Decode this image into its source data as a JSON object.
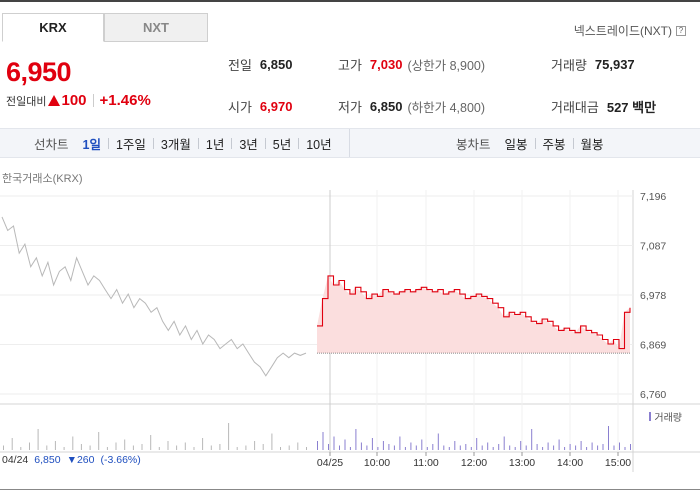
{
  "market_tabs": [
    {
      "label": "KRX",
      "active": true
    },
    {
      "label": "NXT",
      "active": false
    }
  ],
  "nxt_link": {
    "label": "넥스트레이드(NXT)",
    "help": "?"
  },
  "quote": {
    "price": "6,950",
    "change_label": "전일대비",
    "change": "100",
    "change_pct": "+1.46%"
  },
  "stats": {
    "prev_close": {
      "label": "전일",
      "value": "6,850"
    },
    "high": {
      "label": "고가",
      "value": "7,030",
      "sub": "(상한가 8,900)"
    },
    "volume": {
      "label": "거래량",
      "value": "75,937"
    },
    "open": {
      "label": "시가",
      "value": "6,970"
    },
    "low": {
      "label": "저가",
      "value": "6,850",
      "sub": "(하한가 4,800)"
    },
    "trade_value": {
      "label": "거래대금",
      "value": "527 백만"
    }
  },
  "line_chart_tabs": {
    "head": "선차트",
    "items": [
      "1일",
      "1주일",
      "3개월",
      "1년",
      "3년",
      "5년",
      "10년"
    ],
    "active_index": 0
  },
  "candle_chart_tabs": {
    "head": "봉차트",
    "items": [
      "일봉",
      "주봉",
      "월봉"
    ]
  },
  "exchange_label": "한국거래소(KRX)",
  "volume_legend": "거래량",
  "previous_day": {
    "date": "04/24",
    "price": "6,850",
    "change": "▼260",
    "pct": "(-3.66%)"
  },
  "chart_data": {
    "type": "line",
    "title": "",
    "y_ticks": [
      "7,196",
      "7,087",
      "6,978",
      "6,869",
      "6,760"
    ],
    "ylim": [
      6760,
      7196
    ],
    "x_ticks": [
      "04/25",
      "10:00",
      "11:00",
      "12:00",
      "13:00",
      "14:00",
      "15:00"
    ],
    "baseline": 6850,
    "prev_day_series": {
      "name": "04/24",
      "values": [
        7150,
        7120,
        7130,
        7070,
        7090,
        7040,
        7060,
        7020,
        7050,
        7000,
        7030,
        7040,
        7010,
        7060,
        7030,
        7000,
        7020,
        7010,
        6990,
        6970,
        6990,
        6960,
        6980,
        6950,
        6970,
        6960,
        6940,
        6950,
        6920,
        6900,
        6920,
        6890,
        6910,
        6880,
        6900,
        6870,
        6890,
        6880,
        6860,
        6870,
        6880,
        6860,
        6870,
        6850,
        6830,
        6820,
        6800,
        6820,
        6840,
        6850,
        6840,
        6850,
        6845,
        6850
      ]
    },
    "today_series": {
      "name": "04/25",
      "values": [
        6910,
        6970,
        7020,
        7000,
        7010,
        6990,
        6980,
        6995,
        6985,
        6970,
        6980,
        6975,
        6990,
        6985,
        6980,
        6985,
        6990,
        6985,
        6990,
        6995,
        6990,
        6985,
        6990,
        6980,
        6985,
        6990,
        6980,
        6970,
        6975,
        6980,
        6975,
        6970,
        6960,
        6950,
        6930,
        6940,
        6935,
        6940,
        6930,
        6920,
        6915,
        6925,
        6920,
        6910,
        6900,
        6905,
        6900,
        6895,
        6910,
        6900,
        6895,
        6890,
        6880,
        6870,
        6880,
        6860,
        6940,
        6950
      ]
    },
    "volume_prev": [
      3,
      8,
      2,
      5,
      14,
      3,
      6,
      2,
      9,
      4,
      3,
      12,
      2,
      5,
      7,
      3,
      4,
      10,
      2,
      6,
      3,
      5,
      2,
      8,
      3,
      4,
      18,
      2,
      3,
      6,
      4,
      11,
      2,
      3,
      5,
      2
    ],
    "volume_today": [
      6,
      12,
      4,
      9,
      3,
      7,
      2,
      14,
      5,
      3,
      8,
      2,
      6,
      4,
      3,
      9,
      2,
      5,
      3,
      7,
      2,
      4,
      11,
      3,
      2,
      6,
      3,
      4,
      2,
      8,
      3,
      5,
      2,
      4,
      9,
      3,
      2,
      6,
      3,
      14,
      4,
      2,
      5,
      3,
      7,
      2,
      4,
      3,
      6,
      2,
      5,
      3,
      4,
      16,
      3,
      5,
      2,
      4
    ],
    "colors": {
      "prev": "#b8b8b8",
      "today": "#e0000f",
      "fill": "#fbdede",
      "volume": "#8a7fd0"
    }
  }
}
